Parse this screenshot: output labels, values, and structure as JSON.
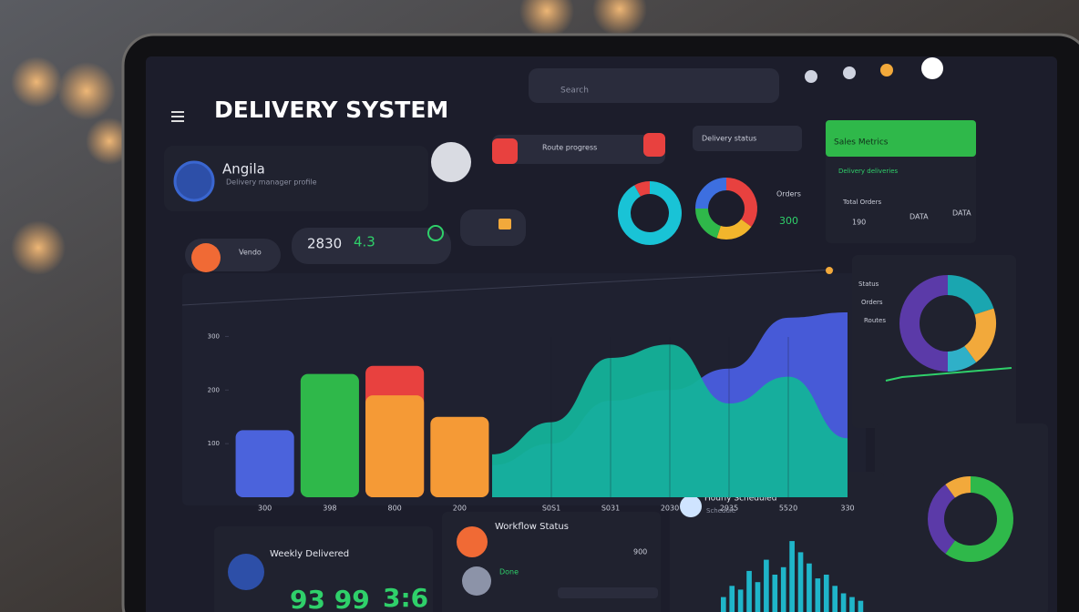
{
  "header": {
    "title": "DELIVERY SYSTEM",
    "search": "Search"
  },
  "profile": {
    "name": "Angila",
    "subtitle": "Delivery manager profile"
  },
  "widgets": {
    "progress_label": "Route progress",
    "card_label": "Delivery status",
    "pill_label": "Vendo",
    "stat_main": "2830",
    "stat_rate": "4.3",
    "donut_label": "Orders",
    "donut_value": "300"
  },
  "sales": {
    "title": "Sales Metrics",
    "subtitle": "Delivery deliveries",
    "row_label": "Total Orders",
    "cells": [
      "190",
      "DATA",
      "DATA"
    ]
  },
  "status_card": {
    "labels": [
      "Status",
      "Orders",
      "Routes"
    ]
  },
  "cards": {
    "weekly": {
      "title": "Weekly Delivered",
      "value_a": "93 99",
      "value_b": "3:6"
    },
    "workflow": {
      "title": "Workflow Status",
      "row": "Done",
      "row_value": "900"
    },
    "hourly": {
      "title": "Hourly Scheduled",
      "subtitle": "Schedule"
    }
  },
  "chart_data": [
    {
      "type": "bar",
      "categories": [
        "300",
        "398",
        "800",
        "200"
      ],
      "ylim": [
        0,
        350
      ],
      "yticks": [
        100,
        200,
        300
      ],
      "series": [
        {
          "colors": [
            "#4b63dc",
            "#2fb84a",
            "#e8413f",
            "#f59a36"
          ],
          "values": [
            125,
            230,
            245,
            150
          ]
        },
        {
          "colors": [
            "#4b63dc",
            "#2fb84a",
            "#f59a36",
            "#f59a36"
          ],
          "values": [
            null,
            null,
            190,
            null
          ]
        }
      ]
    },
    {
      "type": "area",
      "categories": [
        null,
        "S0S1",
        "S031",
        "2030",
        "2935",
        "5520",
        "330"
      ],
      "ylim": [
        0,
        350
      ],
      "series": [
        {
          "color": "#4a5ee0",
          "values": [
            60,
            100,
            180,
            200,
            240,
            335,
            345
          ]
        },
        {
          "color": "#14b39a",
          "values": [
            80,
            140,
            260,
            285,
            175,
            225,
            110
          ]
        }
      ]
    },
    {
      "type": "pie",
      "values": [
        92,
        8
      ],
      "colors": [
        "#19c3d6",
        "#e8413f"
      ]
    },
    {
      "type": "pie",
      "values": [
        35,
        20,
        20,
        25
      ],
      "colors": [
        "#e8413f",
        "#f2b52c",
        "#2fb84a",
        "#3d6fe0"
      ]
    },
    {
      "type": "pie",
      "values": [
        20,
        20,
        10,
        50
      ],
      "colors": [
        "#1aa6b0",
        "#f2a93b",
        "#2fb0c8",
        "#5b3aa8"
      ]
    },
    {
      "type": "pie",
      "values": [
        60,
        30,
        10
      ],
      "colors": [
        "#2fb84a",
        "#5b3aa8",
        "#f2a93b"
      ]
    },
    {
      "type": "bar",
      "ylim": [
        0,
        100
      ],
      "color": "#1fb5c9",
      "values": [
        20,
        35,
        30,
        55,
        40,
        70,
        50,
        60,
        95,
        80,
        65,
        45,
        50,
        35,
        25,
        20,
        15
      ]
    }
  ]
}
